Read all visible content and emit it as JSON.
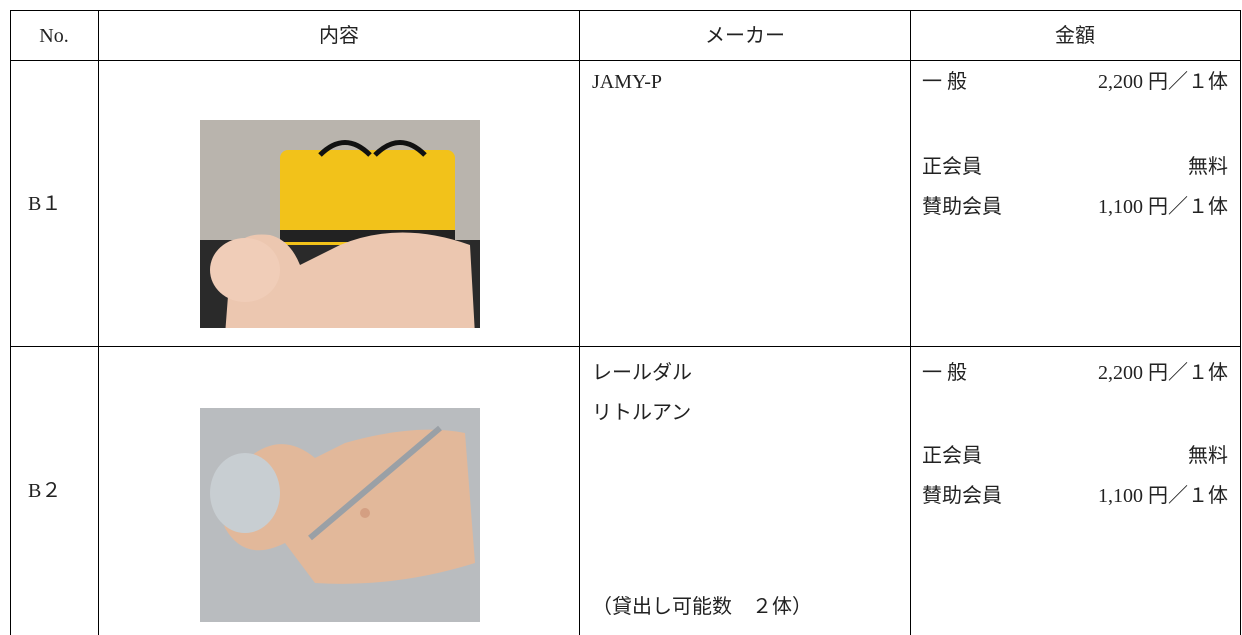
{
  "table": {
    "header": [
      "No.",
      "内容",
      "メーカー",
      "金額"
    ],
    "rows": [
      {
        "no": "B１",
        "maker": [
          "JAMY-P"
        ],
        "prices": [
          {
            "label": "一 般",
            "amount": "2,200 円／１体"
          },
          {
            "label": "正会員",
            "amount": "無料"
          },
          {
            "label": "賛助会員",
            "amount": "1,100 円／１体"
          }
        ]
      },
      {
        "no": "B２",
        "maker": [
          "レールダル",
          "リトルアン"
        ],
        "note": "（貸出し可能数　２体）",
        "prices": [
          {
            "label": "一 般",
            "amount": "2,200 円／１体"
          },
          {
            "label": "正会員",
            "amount": "無料"
          },
          {
            "label": "賛助会員",
            "amount": "1,100 円／１体"
          }
        ]
      }
    ]
  }
}
